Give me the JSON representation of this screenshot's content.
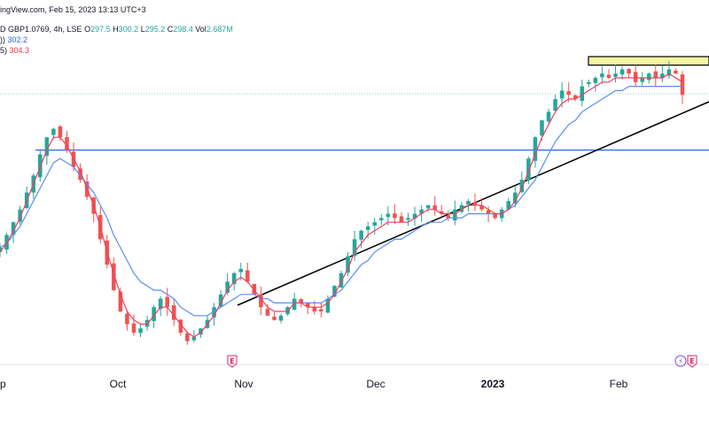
{
  "header": {
    "source": "ingView.com, Feb 15, 2023 13:13 UTC+3",
    "symbol": "D GBP1.0769, 4h, LSE",
    "o_label": "O",
    "o_value": "297.5",
    "h_label": "H",
    "h_value": "300.2",
    "l_label": "L",
    "l_value": "295.2",
    "c_label": "C",
    "c_value": "298.4",
    "vol_label": "Vol",
    "vol_value": "2.687M",
    "ma1_prefix": "))",
    "ma1_value": "302.2",
    "ma2_prefix": "5)",
    "ma2_value": "304.3"
  },
  "colors": {
    "up": "#26a69a",
    "down": "#ef5350",
    "ma_fast": "#f23d5c",
    "ma_slow": "#5b8def",
    "support": "#2962ff",
    "trendline": "#000000",
    "resistance_zone": "#f5f5a0"
  },
  "events": [
    {
      "glyph": "E",
      "kind": "earnings",
      "x_label": "Nov"
    },
    {
      "glyph": "⚡",
      "kind": "news",
      "x_label": "Feb"
    },
    {
      "glyph": "E",
      "kind": "earnings",
      "x_label": "Feb"
    }
  ],
  "chart_data": {
    "type": "line",
    "subtype": "candlestick",
    "x_ticks": [
      "p",
      "Oct",
      "Nov",
      "Dec",
      "2023",
      "Feb"
    ],
    "y_range": [
      245,
      320
    ],
    "grid": false,
    "series": [
      {
        "name": "",
        "kind": "close",
        "values": [
          270,
          273,
          276,
          279,
          283,
          287,
          292,
          296,
          298,
          296,
          293,
          289,
          286,
          282,
          278,
          272,
          266,
          260,
          255,
          252,
          250,
          251,
          253,
          256,
          258,
          256,
          253,
          250,
          248,
          249,
          251,
          253,
          256,
          259,
          262,
          264,
          265,
          262,
          259,
          256,
          254,
          253,
          254,
          256,
          258,
          257,
          256,
          255,
          255,
          258,
          261,
          264,
          268,
          272,
          274,
          275,
          276,
          277,
          278,
          277,
          276,
          277,
          278,
          279,
          280,
          279,
          278,
          277,
          279,
          280,
          281,
          280,
          279,
          278,
          277,
          279,
          281,
          283,
          286,
          291,
          296,
          300,
          302,
          305,
          307,
          306,
          305,
          308,
          309,
          310,
          311,
          310,
          311,
          312,
          311,
          309,
          310,
          311,
          310,
          311,
          312,
          311,
          306
        ]
      },
      {
        "name": "",
        "kind": "ma_fast",
        "values": [
          269,
          271,
          274,
          277,
          281,
          285,
          289,
          293,
          296,
          296,
          294,
          291,
          288,
          284,
          280,
          275,
          269,
          264,
          259,
          255,
          253,
          252,
          252,
          254,
          256,
          256,
          254,
          252,
          250,
          249,
          250,
          252,
          254,
          257,
          260,
          262,
          263,
          262,
          260,
          258,
          256,
          255,
          255,
          255,
          257,
          257,
          256,
          256,
          256,
          257,
          259,
          262,
          265,
          269,
          271,
          273,
          274,
          275,
          276,
          276,
          276,
          276,
          277,
          278,
          279,
          279,
          278,
          278,
          278,
          279,
          280,
          280,
          280,
          279,
          278,
          278,
          279,
          281,
          284,
          288,
          292,
          296,
          299,
          302,
          304,
          305,
          305,
          306,
          307,
          308,
          309,
          309,
          310,
          310,
          310,
          310,
          310,
          310,
          310,
          310,
          311,
          310,
          309
        ]
      },
      {
        "name": "",
        "kind": "ma_slow",
        "values": [
          270,
          271,
          273,
          275,
          278,
          281,
          284,
          287,
          290,
          291,
          290,
          289,
          287,
          285,
          283,
          280,
          277,
          273,
          270,
          267,
          264,
          262,
          261,
          260,
          260,
          259,
          258,
          256,
          255,
          254,
          254,
          254,
          255,
          256,
          257,
          258,
          259,
          259,
          259,
          258,
          258,
          257,
          257,
          257,
          257,
          257,
          257,
          257,
          257,
          258,
          259,
          260,
          262,
          264,
          266,
          267,
          269,
          270,
          271,
          272,
          272,
          273,
          274,
          275,
          276,
          276,
          276,
          277,
          277,
          277,
          278,
          278,
          278,
          278,
          278,
          278,
          279,
          280,
          282,
          284,
          286,
          289,
          292,
          295,
          297,
          299,
          300,
          302,
          303,
          304,
          305,
          306,
          307,
          307,
          308,
          308,
          308,
          308,
          308,
          308,
          308,
          308,
          308
        ]
      }
    ],
    "levels": [
      {
        "name": "",
        "kind": "horizontal",
        "value": 293
      },
      {
        "name": "",
        "kind": "resistance_zone",
        "from": 313,
        "to": 315
      }
    ],
    "trendline": {
      "x_from": "Oct",
      "y_from": 250,
      "x_to": "Feb",
      "y_to": 307
    },
    "title": "",
    "xlabel": "",
    "ylabel": ""
  }
}
